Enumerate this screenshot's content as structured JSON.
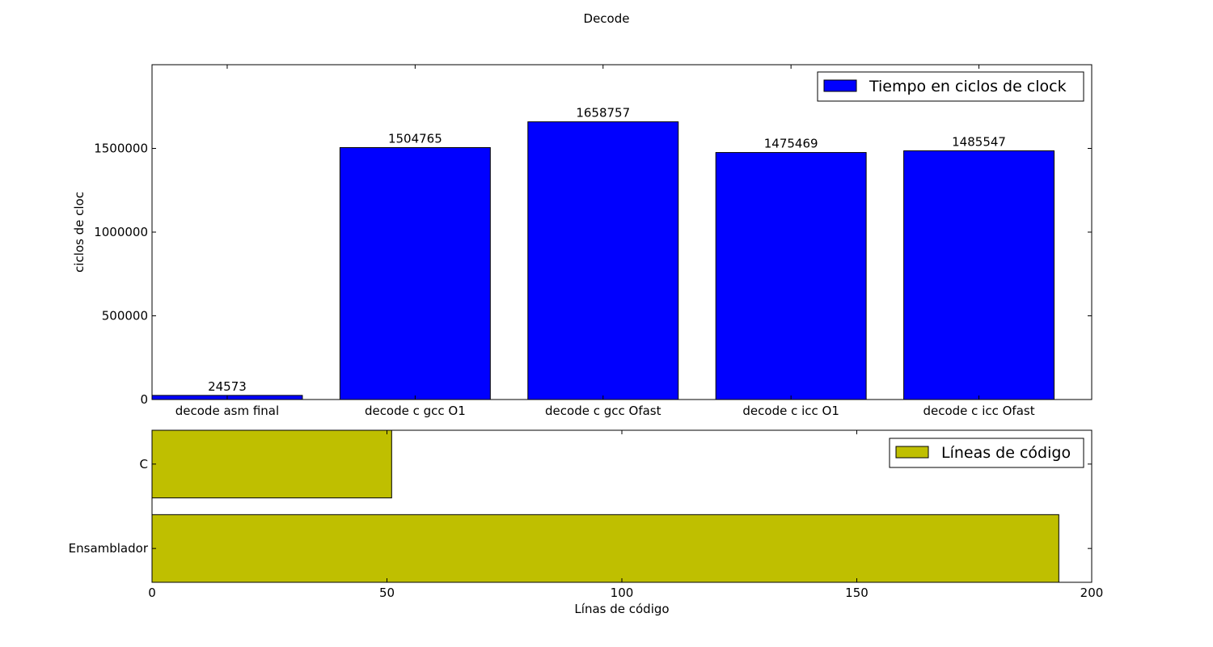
{
  "figure": {
    "title": "Decode"
  },
  "chart_data": [
    {
      "type": "bar",
      "orientation": "vertical",
      "title": "",
      "xlabel": "",
      "ylabel": "ciclos de cloc",
      "categories": [
        "decode asm final",
        "decode c gcc O1",
        "decode c gcc Ofast",
        "decode c icc O1",
        "decode c icc Ofast"
      ],
      "series": [
        {
          "name": "Tiempo en ciclos de clock",
          "values": [
            24573,
            1504765,
            1658757,
            1475469,
            1485547
          ],
          "color": "#0000ff"
        }
      ],
      "data_labels": [
        "24573",
        "1504765",
        "1658757",
        "1475469",
        "1485547"
      ],
      "ylim": [
        0,
        2000000
      ],
      "yticks": [
        0,
        500000,
        1000000,
        1500000
      ],
      "ytick_labels": [
        "0",
        "500000",
        "1000000",
        "1500000"
      ],
      "grid": false,
      "legend": "top-right"
    },
    {
      "type": "bar",
      "orientation": "horizontal",
      "title": "",
      "xlabel": "Línas de código",
      "ylabel": "",
      "categories": [
        "C",
        "Ensamblador"
      ],
      "series": [
        {
          "name": "Líneas de código",
          "values": [
            51,
            193
          ],
          "color": "#bfbf00"
        }
      ],
      "xlim": [
        0,
        200
      ],
      "xticks": [
        0,
        50,
        100,
        150,
        200
      ],
      "xtick_labels": [
        "0",
        "50",
        "100",
        "150",
        "200"
      ],
      "grid": false,
      "legend": "top-right"
    }
  ]
}
